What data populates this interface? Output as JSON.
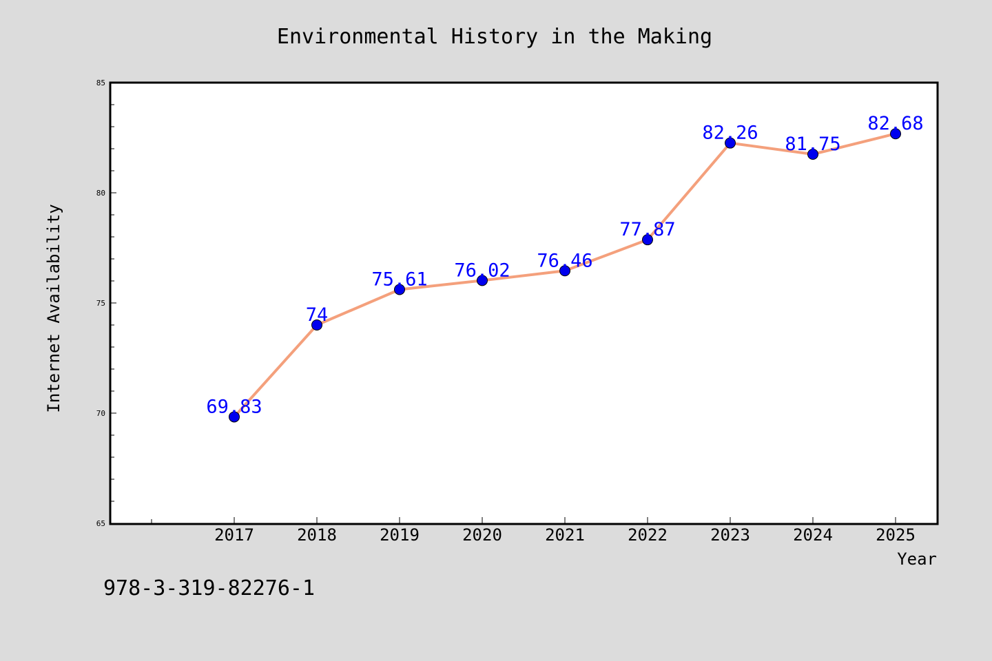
{
  "chart_data": {
    "type": "line",
    "title": "Environmental History in the Making",
    "xlabel": "Year",
    "ylabel": "Internet Availability",
    "x": [
      "2017",
      "2018",
      "2019",
      "2020",
      "2021",
      "2022",
      "2023",
      "2024",
      "2025"
    ],
    "series": [
      {
        "values": [
          69.83,
          74,
          75.61,
          76.02,
          76.46,
          77.87,
          82.26,
          81.75,
          82.68
        ],
        "labels": [
          "69.83",
          "74",
          "75.61",
          "76.02",
          "76.46",
          "77.87",
          "82.26",
          "81.75",
          "82.68"
        ]
      }
    ],
    "ylim": [
      65,
      85
    ],
    "yticks": [
      "65",
      "70",
      "75",
      "80",
      "85"
    ],
    "grid": false,
    "legend": "none",
    "colors": {
      "line": "#f4a07c",
      "marker": "#0000ee",
      "label": "#0000ff",
      "background": "#dcdcdc",
      "plot_background": "#ffffff"
    }
  },
  "footer": {
    "isbn": "978-3-319-82276-1"
  }
}
